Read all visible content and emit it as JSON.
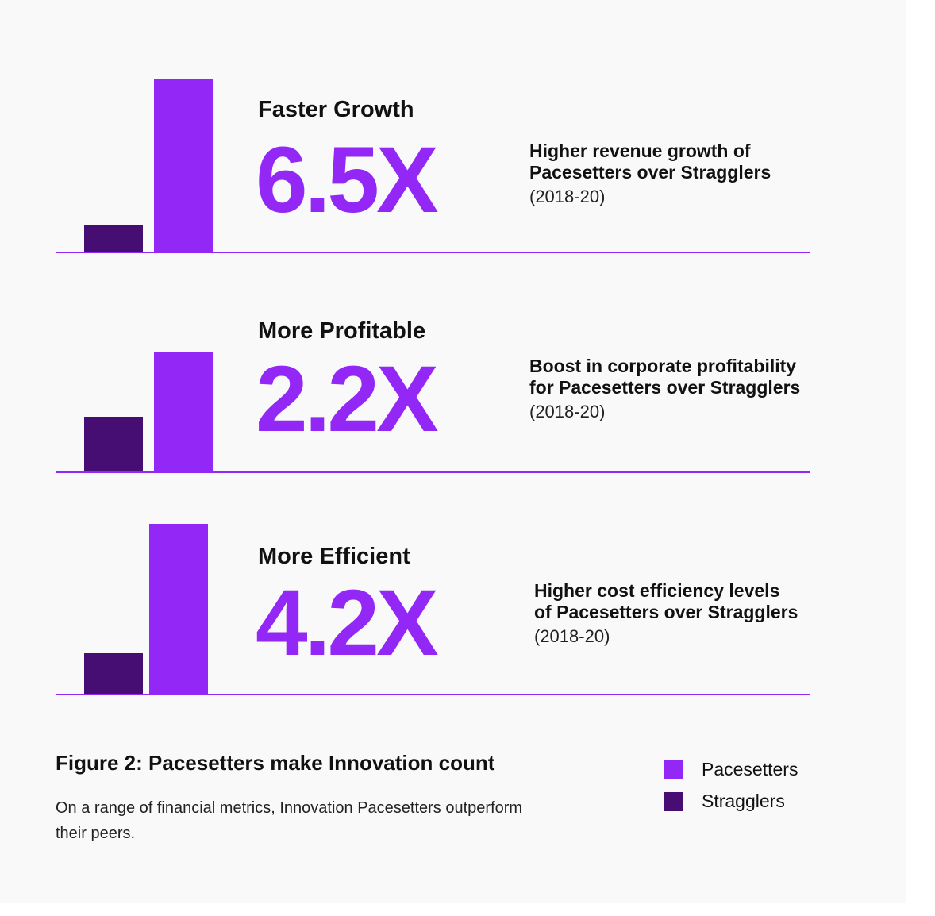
{
  "colors": {
    "pacesetters": "#9327F5",
    "stragglers": "#460E73",
    "baseline": "#9327F5"
  },
  "chart_data": {
    "type": "bar",
    "title": "Figure 2: Pacesetters make Innovation count",
    "subtitle": "On a range of financial metrics, Innovation Pacesetters outperform their peers.",
    "legend": {
      "placement": "bottom-right",
      "entries": [
        "Pacesetters",
        "Stragglers"
      ]
    },
    "series_names": [
      "Pacesetters",
      "Stragglers"
    ],
    "panels": [
      {
        "title": "Faster Growth",
        "value_label": "6.5X",
        "multiple": 6.5,
        "description_lines": [
          "Higher revenue growth of",
          "Pacesetters over Stragglers"
        ],
        "period": "(2018-20)",
        "series": [
          {
            "name": "Pacesetters",
            "value": 6.5
          },
          {
            "name": "Stragglers",
            "value": 1
          }
        ]
      },
      {
        "title": "More Profitable",
        "value_label": "2.2X",
        "multiple": 2.2,
        "description_lines": [
          "Boost in corporate profitability",
          "for Pacesetters over Stragglers"
        ],
        "period": "(2018-20)",
        "series": [
          {
            "name": "Pacesetters",
            "value": 2.2
          },
          {
            "name": "Stragglers",
            "value": 1
          }
        ]
      },
      {
        "title": "More Efficient",
        "value_label": "4.2X",
        "multiple": 4.2,
        "description_lines": [
          "Higher cost efficiency levels",
          "of Pacesetters over Stragglers"
        ],
        "period": "(2018-20)",
        "series": [
          {
            "name": "Pacesetters",
            "value": 4.2
          },
          {
            "name": "Stragglers",
            "value": 1
          }
        ]
      }
    ]
  }
}
